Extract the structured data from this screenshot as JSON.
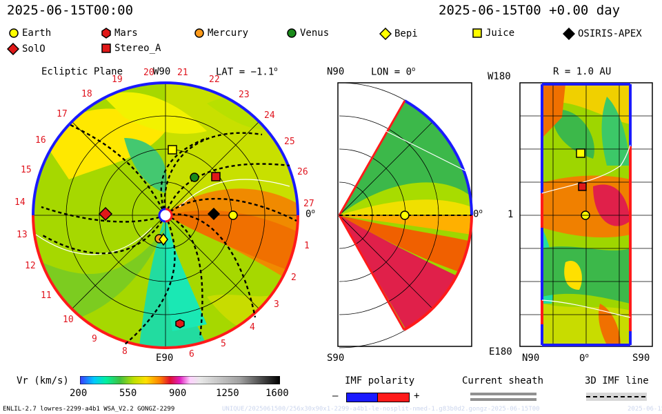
{
  "header": {
    "timestamp_left": "2025-06-15T00:00",
    "timestamp_right": "2025-06-15T00 +0.00 day"
  },
  "legend": [
    {
      "name": "Earth",
      "shape": "circle",
      "color": "#ffff00"
    },
    {
      "name": "Mars",
      "shape": "hexagon",
      "color": "#e01818"
    },
    {
      "name": "Mercury",
      "shape": "circle",
      "color": "#ff9a1a"
    },
    {
      "name": "Venus",
      "shape": "circle",
      "color": "#1a8a1a"
    },
    {
      "name": "Bepi",
      "shape": "diamond",
      "color": "#ffff00"
    },
    {
      "name": "Juice",
      "shape": "square",
      "color": "#ffff00"
    },
    {
      "name": "OSIRIS-APEX",
      "shape": "diamond",
      "color": "#000000"
    },
    {
      "name": "SolO",
      "shape": "diamond",
      "color": "#e01818"
    },
    {
      "name": "Stereo_A",
      "shape": "square",
      "color": "#e01818"
    }
  ],
  "panel_ecliptic": {
    "title": "Ecliptic Plane",
    "lat_label": "LAT = −1.1",
    "top_label": "W90",
    "bottom_label": "E90",
    "right_label": "0",
    "sector_numbers": [
      "1",
      "2",
      "3",
      "4",
      "5",
      "6",
      "8",
      "9",
      "10",
      "11",
      "12",
      "13",
      "14",
      "15",
      "16",
      "17",
      "18",
      "19",
      "20",
      "21",
      "22",
      "23",
      "24",
      "25",
      "26",
      "27"
    ]
  },
  "panel_meridional": {
    "top_label": "N90",
    "lon_label": "LON = 0",
    "right_label": "0",
    "bottom_label": "S90"
  },
  "panel_map": {
    "r_label": "R = 1.0 AU",
    "top_left_label": "W180",
    "mid_left_label": "1",
    "bottom_left_label": "E180",
    "x_labels": [
      "N90",
      "0",
      "S90"
    ]
  },
  "colorbar": {
    "label": "Vr (km/s)",
    "ticks": [
      "200",
      "550",
      "900",
      "1250",
      "1600"
    ],
    "min": 200,
    "max": 1600
  },
  "keys": {
    "imf_title": "IMF polarity",
    "imf_minus": "–",
    "imf_plus": "+",
    "sheath_title": "Current sheath",
    "imf_line_title": "3D IMF line"
  },
  "footer": {
    "left": "ENLIL-2.7 lowres-2299-a4b1 WSA_V2.2 GONGZ-2299",
    "center": "UNIQUE/2025061500/256x30x90x1-2299-a4b1-le-nosplit-nmed-1.g83b0d2.gongz-2025-06-15T00",
    "right": "2025-06-15"
  },
  "colors": {
    "positive_polarity": "#ff1a1a",
    "negative_polarity": "#1a1aff",
    "background_field": "#f2e600",
    "sector_numbers": "#e0141e"
  }
}
